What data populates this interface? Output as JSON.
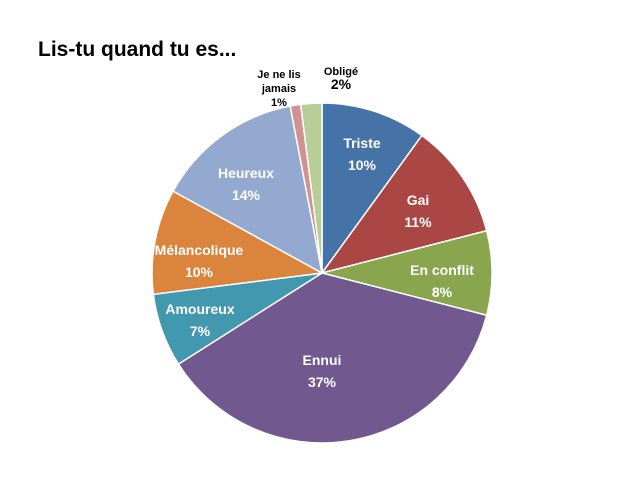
{
  "chart_data": {
    "type": "pie",
    "title": "Lis-tu quand tu es...",
    "start_angle_deg": 0,
    "direction": "clockwise",
    "slices": [
      {
        "label": "Triste",
        "value": 10,
        "value_label": "10%",
        "color": "#4572A7",
        "label_color": "#ffffff"
      },
      {
        "label": "Gai",
        "value": 11,
        "value_label": "11%",
        "color": "#AA4643",
        "label_color": "#ffffff"
      },
      {
        "label": "En conflit",
        "value": 8,
        "value_label": "8%",
        "color": "#89A54E",
        "label_color": "#ffffff"
      },
      {
        "label": "Ennui",
        "value": 37,
        "value_label": "37%",
        "color": "#71588F",
        "label_color": "#ffffff"
      },
      {
        "label": "Amoureux",
        "value": 7,
        "value_label": "7%",
        "color": "#4198AF",
        "label_color": "#ffffff"
      },
      {
        "label": "Mélancolique",
        "value": 10,
        "value_label": "10%",
        "color": "#DB843D",
        "label_color": "#ffffff"
      },
      {
        "label": "Heureux",
        "value": 14,
        "value_label": "14%",
        "color": "#93A9CF",
        "label_color": "#ffffff"
      },
      {
        "label": "Je ne lis jamais",
        "label_lines": [
          "Je ne lis",
          "jamais"
        ],
        "value": 1,
        "value_label": "1%",
        "color": "#D19392",
        "label_color": "#000000",
        "outside": true
      },
      {
        "label": "Obligé",
        "value": 2,
        "value_label": "2%",
        "color": "#B9CD96",
        "label_color": "#000000",
        "outside": true
      }
    ]
  }
}
